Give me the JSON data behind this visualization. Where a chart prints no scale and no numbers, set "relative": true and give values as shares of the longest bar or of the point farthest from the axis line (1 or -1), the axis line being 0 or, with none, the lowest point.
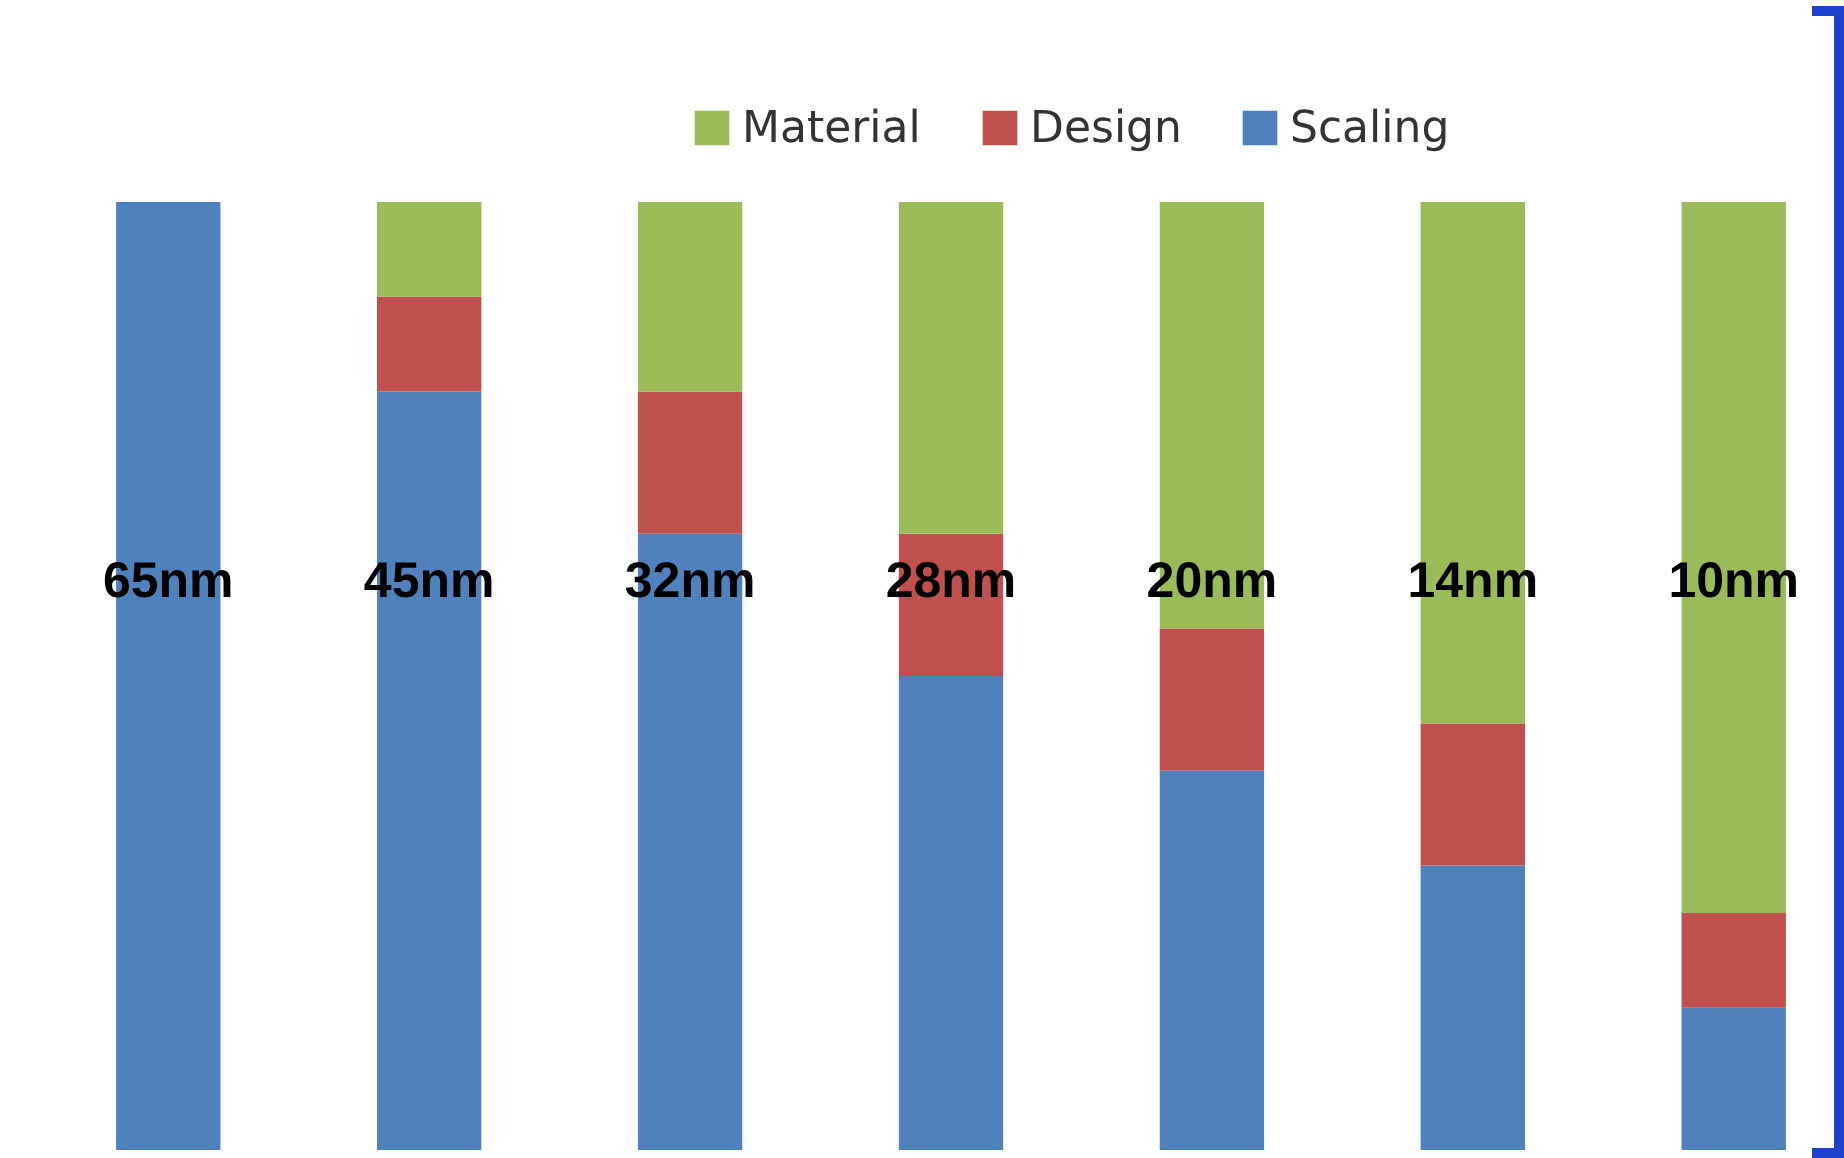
{
  "chart_data": {
    "type": "bar",
    "stacked": true,
    "relative": true,
    "legend": "top right",
    "categories": [
      "65nm",
      "45nm",
      "32nm",
      "28nm",
      "20nm",
      "14nm",
      "10nm"
    ],
    "series": [
      {
        "name": "Scaling",
        "color": "#4f81bd",
        "values": [
          1,
          0.8,
          0.65,
          0.5,
          0.4,
          0.3,
          0.15
        ]
      },
      {
        "name": "Design",
        "color": "#c0504d",
        "values": [
          0,
          0.1,
          0.15,
          0.15,
          0.15,
          0.15,
          0.1
        ]
      },
      {
        "name": "Material",
        "color": "#9bbb59",
        "values": [
          0,
          0.1,
          0.2,
          0.35,
          0.45,
          0.55,
          0.75
        ]
      }
    ]
  }
}
